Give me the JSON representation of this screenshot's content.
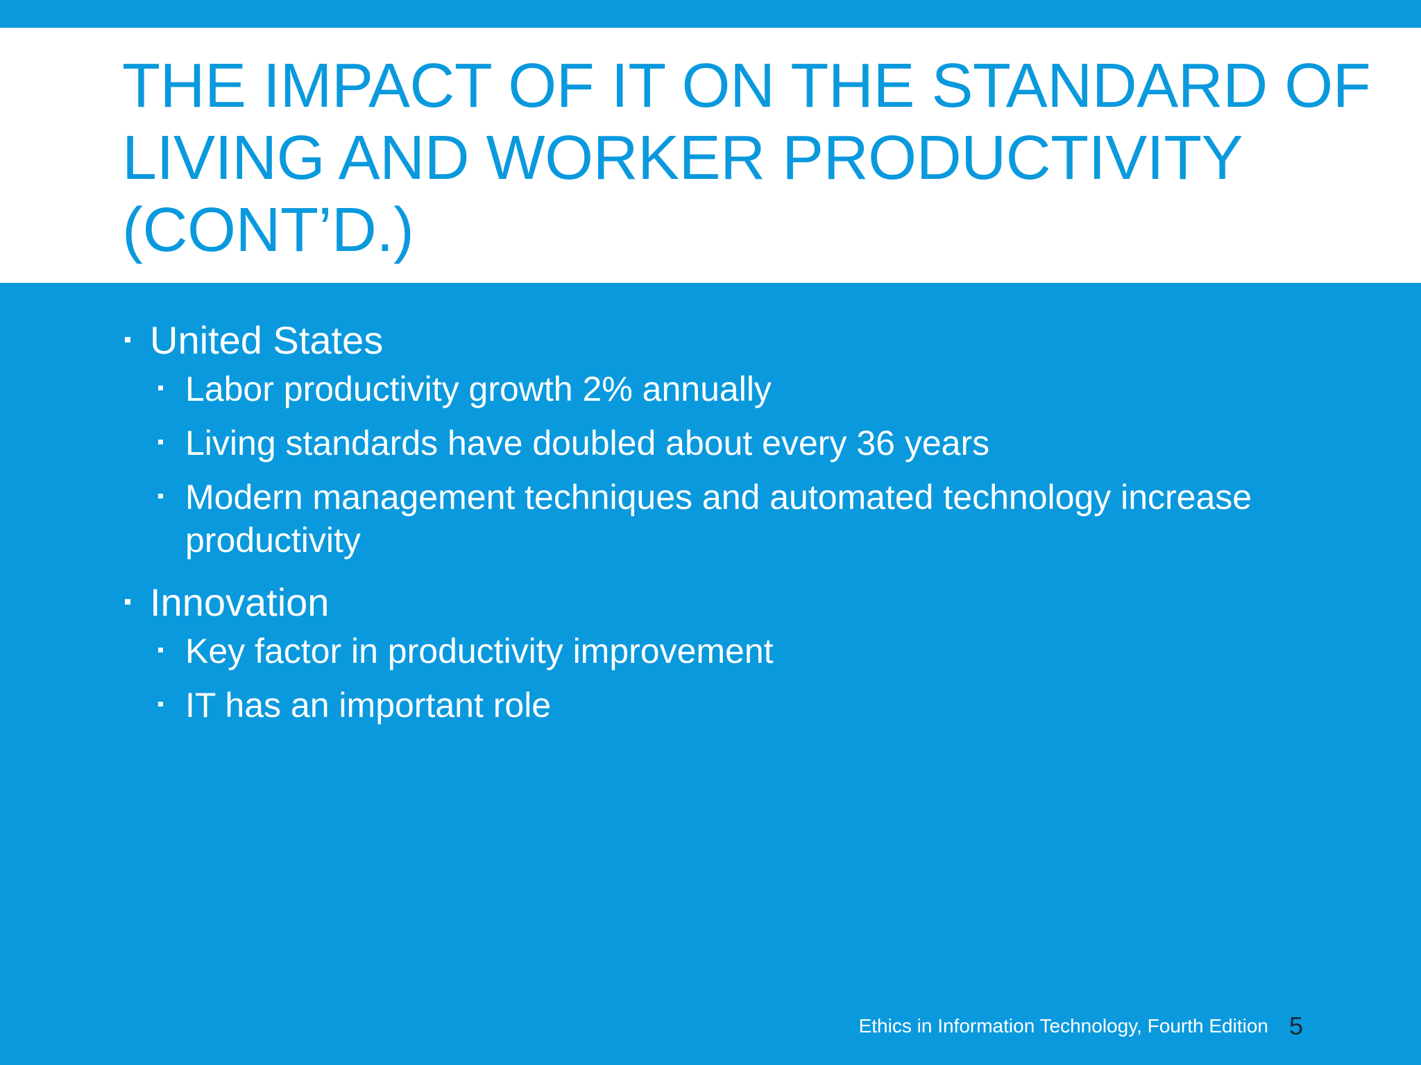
{
  "slide": {
    "title": "THE IMPACT OF IT ON THE STANDARD OF LIVING AND WORKER PRODUCTIVITY (CONT’D.)",
    "bullets": [
      {
        "text": "United States",
        "sub": [
          "Labor productivity growth 2% annually",
          "Living standards have doubled about every 36 years",
          "Modern management techniques and automated technology increase productivity"
        ]
      },
      {
        "text": "Innovation",
        "sub": [
          "Key factor in productivity improvement",
          "IT has an important role"
        ]
      }
    ],
    "footer": "Ethics in Information Technology, Fourth Edition",
    "page_number": "5"
  },
  "colors": {
    "accent": "#0a99dd",
    "background_title": "#ffffff",
    "text_body": "#ffffff",
    "page_number": "#1a2a3a"
  }
}
